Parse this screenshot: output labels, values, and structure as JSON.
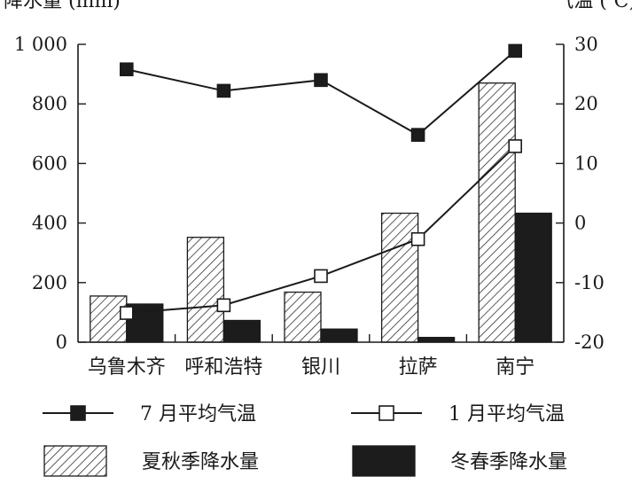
{
  "chart_data": {
    "type": "bar+line",
    "categories": [
      "乌鲁木齐",
      "呼和浩特",
      "银川",
      "拉萨",
      "南宁"
    ],
    "left_axis": {
      "label": "降水量 (mm)",
      "ylim": [
        0,
        1000
      ],
      "ticks": [
        0,
        200,
        400,
        600,
        800,
        1000
      ],
      "tick_labels": [
        "0",
        "200",
        "400",
        "600",
        "800",
        "1 000"
      ]
    },
    "right_axis": {
      "label": "气温 (℃)",
      "ylim": [
        -20,
        30
      ],
      "ticks": [
        -20,
        -10,
        0,
        10,
        20,
        30
      ],
      "tick_labels": [
        "-20",
        "-10",
        "0",
        "10",
        "20",
        "30"
      ]
    },
    "bar_series": [
      {
        "name": "夏秋季降水量",
        "pattern": "hatched",
        "values": [
          155,
          352,
          168,
          433,
          870
        ]
      },
      {
        "name": "冬春季降水量",
        "pattern": "solid",
        "values": [
          128,
          73,
          44,
          16,
          433
        ]
      }
    ],
    "line_series": [
      {
        "name": "7 月平均气温",
        "marker": "filled-square",
        "values": [
          25.8,
          22.2,
          24.0,
          14.8,
          28.9
        ]
      },
      {
        "name": "1 月平均气温",
        "marker": "open-square",
        "values": [
          -15.1,
          -13.8,
          -8.9,
          -2.7,
          12.9
        ]
      }
    ],
    "legend": [
      {
        "label": "7 月平均气温",
        "kind": "line-filled"
      },
      {
        "label": "1 月平均气温",
        "kind": "line-open"
      },
      {
        "label": "夏秋季降水量",
        "kind": "bar-hatched"
      },
      {
        "label": "冬春季降水量",
        "kind": "bar-solid"
      }
    ],
    "grid": false,
    "legend_placement": "bottom"
  }
}
